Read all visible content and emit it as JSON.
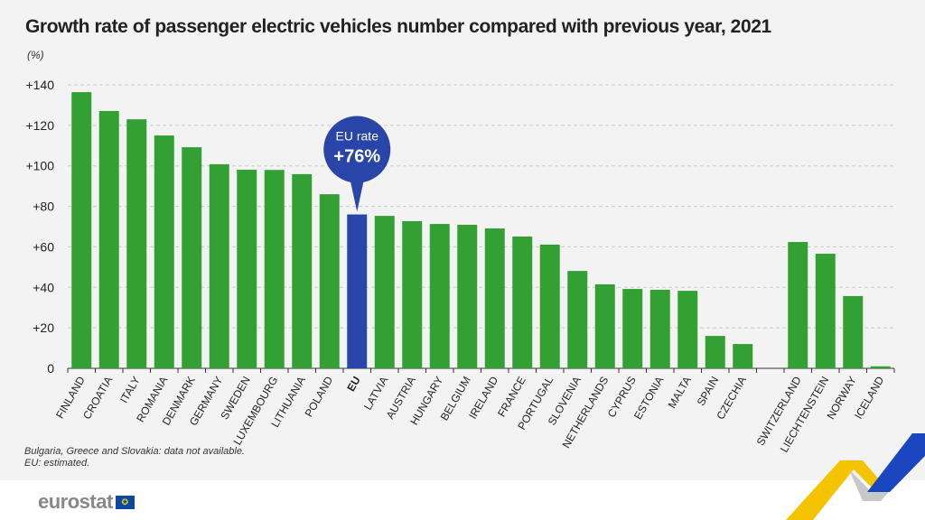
{
  "chart_data": {
    "type": "bar",
    "title": "Growth rate of passenger electric vehicles number compared with previous year, 2021",
    "ylabel": "(%)",
    "xlabel": "",
    "ylim": [
      0,
      140
    ],
    "yticks": [
      0,
      20,
      40,
      60,
      80,
      100,
      120,
      140
    ],
    "ytick_labels": [
      "0",
      "+20",
      "+40",
      "+60",
      "+80",
      "+100",
      "+120",
      "+140"
    ],
    "grid": true,
    "categories": [
      "FINLAND",
      "CROATIA",
      "ITALY",
      "ROMANIA",
      "DENMARK",
      "GERMANY",
      "SWEDEN",
      "LUXEMBOURG",
      "LITHUANIA",
      "POLAND",
      "EU",
      "LATVIA",
      "AUSTRIA",
      "HUNGARY",
      "BELGIUM",
      "IRELAND",
      "FRANCE",
      "PORTUGAL",
      "SLOVENIA",
      "NETHERLANDS",
      "CYPRUS",
      "ESTONIA",
      "MALTA",
      "SPAIN",
      "CZECHIA",
      "",
      "SWITZERLAND",
      "LIECHTENSTEIN",
      "NORWAY",
      "ICELAND"
    ],
    "values": [
      136.4,
      127.1,
      123,
      115,
      109.2,
      100.8,
      98.1,
      98,
      95.9,
      86,
      76,
      75.3,
      72.7,
      71.3,
      70.9,
      69.1,
      65.1,
      61.1,
      48.1,
      41.5,
      39.2,
      38.8,
      38.3,
      16,
      12,
      null,
      62.4,
      56.6,
      35.7,
      1
    ],
    "highlight": "EU",
    "colors": {
      "bar": "#33a033",
      "highlight": "#2a45a8",
      "grid": "#cccccc"
    },
    "annotation": {
      "label": "EU rate",
      "value": "+76%"
    }
  },
  "notes": [
    "Bulgaria, Greece and Slovakia: data not available.",
    "EU: estimated."
  ],
  "logo": "eurostat"
}
